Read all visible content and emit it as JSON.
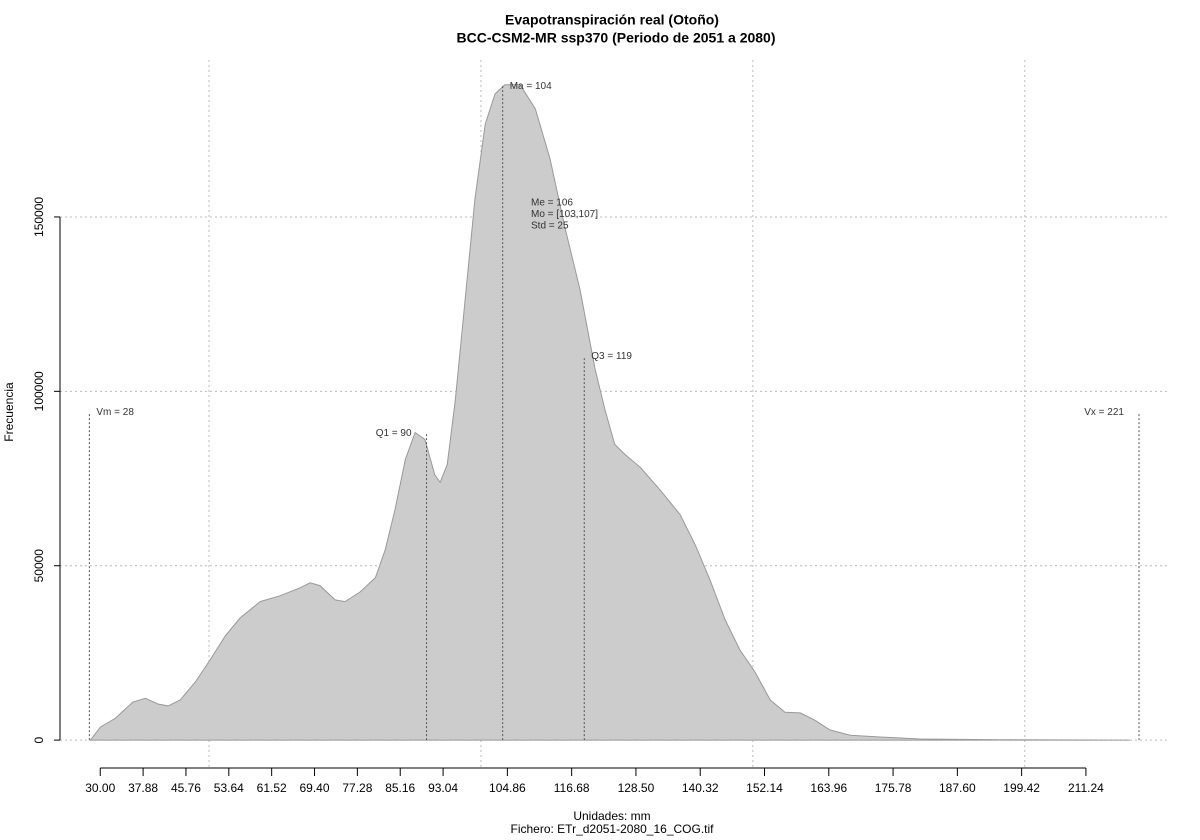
{
  "chart_data": {
    "type": "area",
    "title": "Evapotranspiración real (Otoño)",
    "subtitle": "BCC-CSM2-MR ssp370 (Periodo de 2051 a 2080)",
    "x_label": "Unidades: mm",
    "footer": "Fichero: ETr_d2051-2080_16_COG.tif",
    "y_label": "Frecuencia",
    "series": [
      {
        "name": "Frecuencia",
        "color": "#cccccc",
        "x": [
          28.2,
          30,
          32.8,
          36,
          38.3,
          40.7,
          42.5,
          44.7,
          47.5,
          50.2,
          53,
          55.7,
          59.4,
          63.1,
          66.8,
          68.6,
          70.4,
          73.2,
          75,
          77.8,
          80.6,
          82.4,
          84.2,
          86.1,
          87.9,
          89.7,
          91.5,
          92.5,
          93.8,
          95.3,
          97.1,
          98.9,
          100.8,
          102.6,
          104.4,
          107.2,
          110,
          112.7,
          115.5,
          118.2,
          121,
          122.8,
          124.6,
          126.5,
          129.3,
          132.9,
          136.6,
          139.4,
          142.1,
          144.9,
          147.6,
          150.4,
          153.2,
          155.9,
          158.7,
          161.4,
          164.2,
          167.9,
          173.4,
          180.7,
          195.4,
          219.3
        ],
        "values": [
          0,
          3700,
          6300,
          10900,
          12000,
          10300,
          9800,
          11500,
          16700,
          23000,
          29900,
          35000,
          39700,
          41400,
          43700,
          45100,
          44300,
          40200,
          39700,
          42500,
          46600,
          54600,
          66100,
          80500,
          88200,
          86200,
          76100,
          73900,
          79000,
          97700,
          126400,
          155200,
          176700,
          185300,
          187900,
          187900,
          181000,
          166700,
          146600,
          129300,
          106300,
          94800,
          84800,
          81900,
          78200,
          71800,
          64700,
          56000,
          46000,
          34500,
          25900,
          19500,
          11500,
          8000,
          7800,
          5700,
          2900,
          1400,
          900,
          300,
          100,
          0
        ]
      }
    ],
    "markers": [
      {
        "label": "Vm = 28",
        "x": 28,
        "y": 94000,
        "label_side": "right"
      },
      {
        "label": "Q1 = 90",
        "x": 90,
        "y": 88000,
        "label_side": "left"
      },
      {
        "label": "Ma = 104",
        "x": 104,
        "y": 187500,
        "label_side": "right"
      },
      {
        "label": "Q3 = 119",
        "x": 119,
        "y": 110000,
        "label_side": "right"
      },
      {
        "label": "Vx = 221",
        "x": 221,
        "y": 94000,
        "label_side": "left"
      }
    ],
    "stats": [
      "Me = 106",
      "Mo = [103,107]",
      "Std = 25"
    ],
    "xlim": [
      22.6,
      226.7
    ],
    "ylim": [
      -8000,
      195000
    ],
    "xticks": [
      {
        "value": 30,
        "label": "30.00"
      },
      37.88,
      45.76,
      53.64,
      61.52,
      {
        "value": 69.4,
        "label": "69.40"
      },
      77.28,
      85.16,
      93.04,
      104.86,
      116.68,
      {
        "value": 128.5,
        "label": "128.50"
      },
      140.32,
      152.14,
      163.96,
      175.78,
      {
        "value": 187.6,
        "label": "187.60"
      },
      199.42,
      211.24
    ],
    "xgrid": [
      50,
      100,
      150,
      200
    ],
    "yticks": [
      0,
      50000,
      100000,
      150000
    ],
    "grid": true
  }
}
